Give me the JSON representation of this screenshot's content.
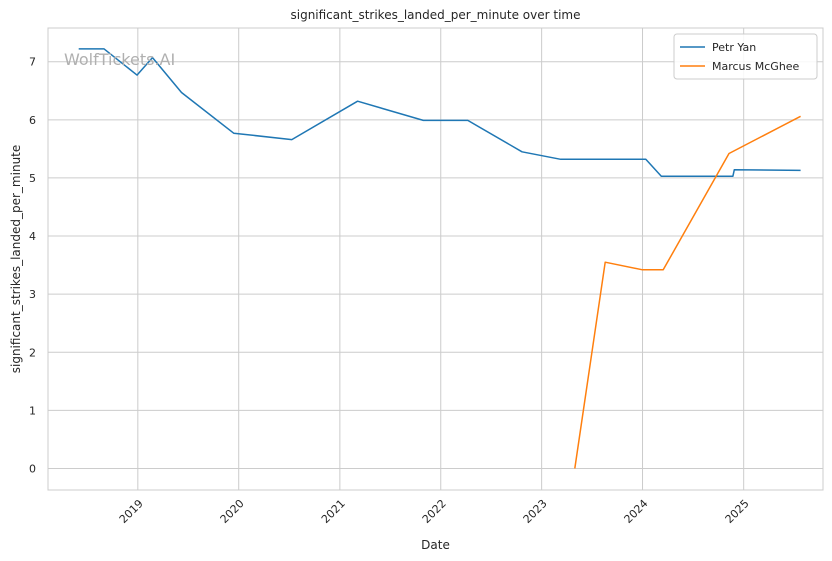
{
  "chart_data": {
    "type": "line",
    "title": "significant_strikes_landed_per_minute over time",
    "xlabel": "Date",
    "ylabel": "significant_strikes_landed_per_minute",
    "x_ticks": [
      "2019",
      "2020",
      "2021",
      "2022",
      "2023",
      "2024",
      "2025"
    ],
    "y_ticks": [
      "0",
      "1",
      "2",
      "3",
      "4",
      "5",
      "6",
      "7"
    ],
    "xlim": [
      "2018-02-10",
      "2025-10-15"
    ],
    "ylim": [
      -0.37,
      7.58
    ],
    "grid": true,
    "legend_position": "top-right",
    "watermark": "WolfTickets.AI",
    "series": [
      {
        "name": "Petr Yan",
        "color": "#1f77b4",
        "points": [
          {
            "x": "2018-06-01",
            "y": 7.22
          },
          {
            "x": "2018-09-01",
            "y": 7.22
          },
          {
            "x": "2018-12-29",
            "y": 6.77
          },
          {
            "x": "2019-02-23",
            "y": 7.07
          },
          {
            "x": "2019-06-08",
            "y": 6.47
          },
          {
            "x": "2019-12-14",
            "y": 5.77
          },
          {
            "x": "2020-07-11",
            "y": 5.66
          },
          {
            "x": "2021-03-06",
            "y": 6.32
          },
          {
            "x": "2021-10-30",
            "y": 5.99
          },
          {
            "x": "2022-04-09",
            "y": 5.99
          },
          {
            "x": "2022-10-22",
            "y": 5.45
          },
          {
            "x": "2023-03-11",
            "y": 5.32
          },
          {
            "x": "2024-01-13",
            "y": 5.32
          },
          {
            "x": "2024-03-09",
            "y": 5.03
          },
          {
            "x": "2024-11-23",
            "y": 5.03
          },
          {
            "x": "2024-11-28",
            "y": 5.14
          },
          {
            "x": "2025-07-26",
            "y": 5.13
          }
        ]
      },
      {
        "name": "Marcus McGhee",
        "color": "#ff7f0e",
        "points": [
          {
            "x": "2023-05-01",
            "y": 0.0
          },
          {
            "x": "2023-08-19",
            "y": 3.55
          },
          {
            "x": "2024-01-01",
            "y": 3.42
          },
          {
            "x": "2024-03-16",
            "y": 3.42
          },
          {
            "x": "2024-11-09",
            "y": 5.42
          },
          {
            "x": "2025-07-26",
            "y": 6.06
          }
        ]
      }
    ]
  }
}
